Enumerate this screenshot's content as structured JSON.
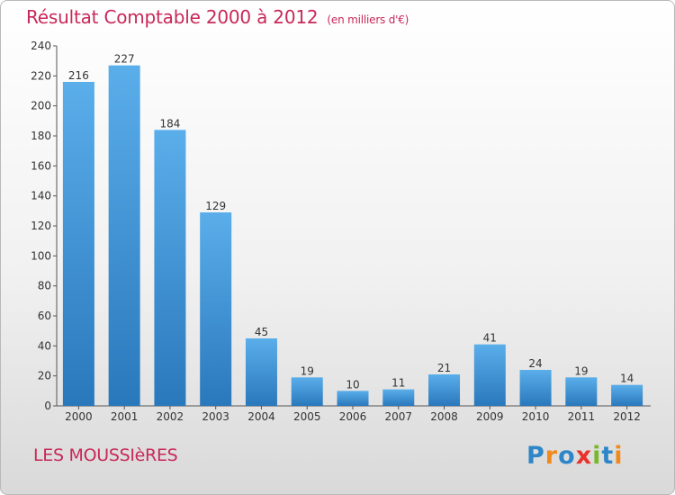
{
  "chart_data": {
    "type": "bar",
    "title": "Résultat Comptable 2000 à 2012",
    "subtitle": "(en milliers d'€)",
    "categories": [
      "2000",
      "2001",
      "2002",
      "2003",
      "2004",
      "2005",
      "2006",
      "2007",
      "2008",
      "2009",
      "2010",
      "2011",
      "2012"
    ],
    "values": [
      216,
      227,
      184,
      129,
      45,
      19,
      10,
      11,
      21,
      41,
      24,
      19,
      14
    ],
    "ylim": [
      0,
      240
    ],
    "yticks": [
      0,
      20,
      40,
      60,
      80,
      100,
      120,
      140,
      160,
      180,
      200,
      220,
      240
    ],
    "grid": false,
    "bar_color": "#3d8fd4",
    "title_color": "#c8285a"
  },
  "commune": "LES MOUSSIèRES",
  "logo": {
    "letters": [
      "P",
      "r",
      "o",
      "x",
      "i",
      "t",
      "i"
    ],
    "colors": [
      "#2e86c8",
      "#f08a1c",
      "#2e86c8",
      "#e8322a",
      "#79b82e",
      "#2e86c8",
      "#f08a1c"
    ]
  }
}
